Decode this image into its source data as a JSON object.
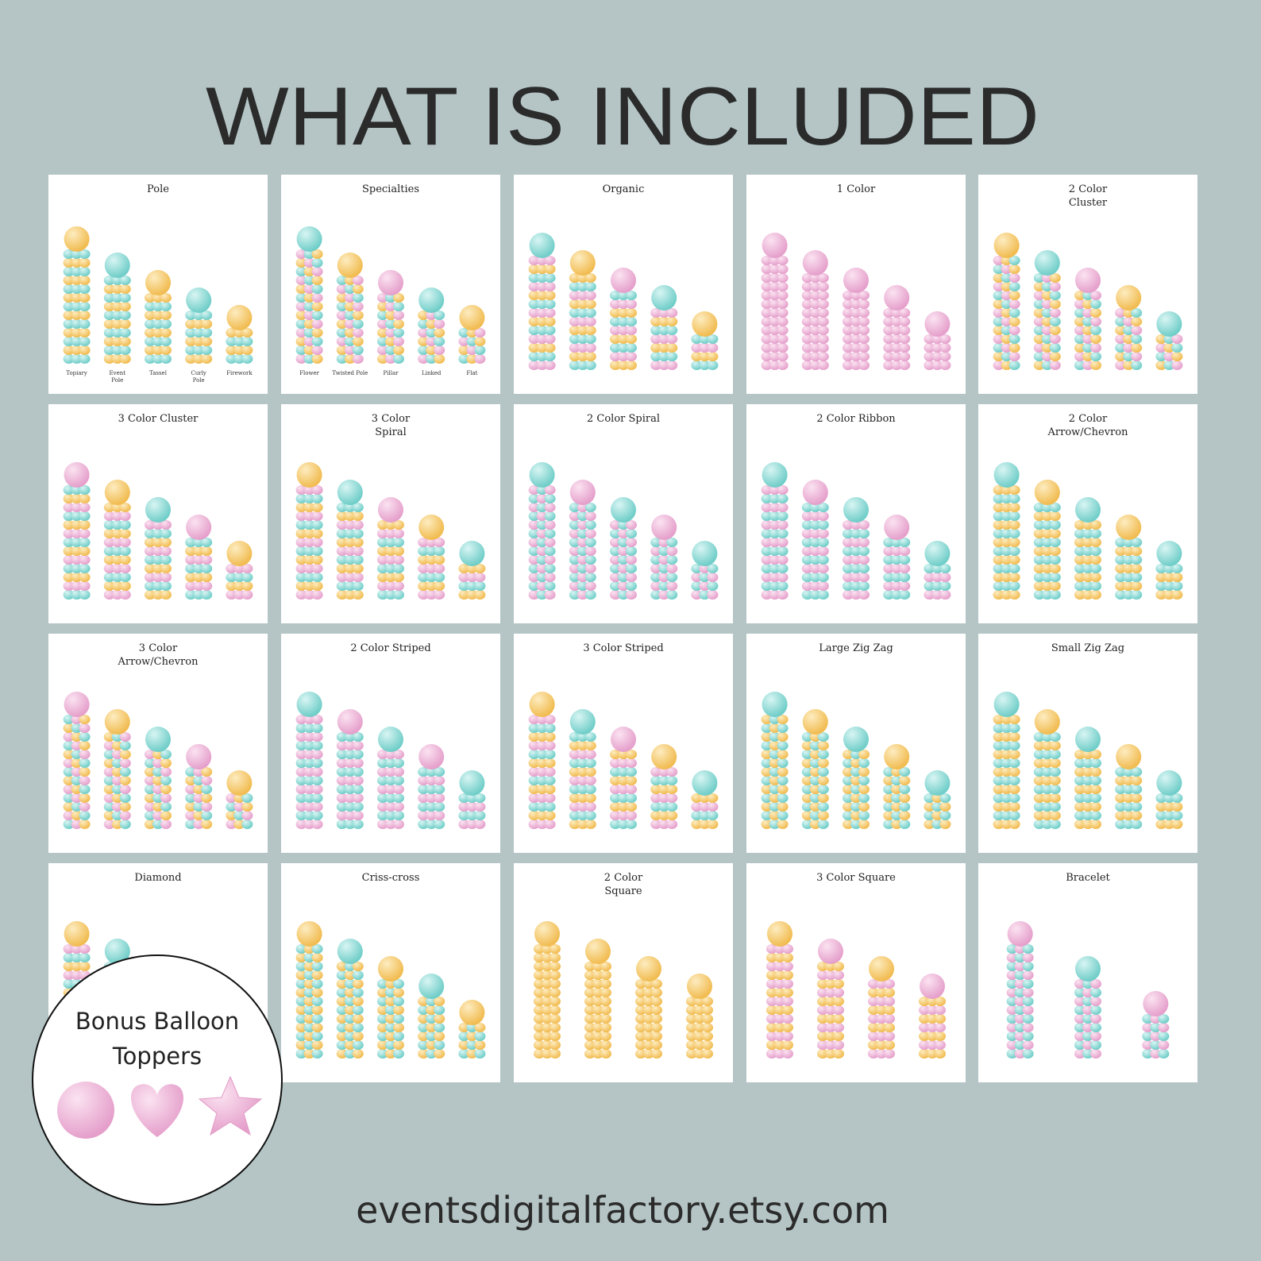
{
  "header": {
    "title": "WHAT IS INCLUDED"
  },
  "cards": [
    {
      "title": [
        "Pole"
      ],
      "labels": [
        [
          "Topiary"
        ],
        [
          "Event",
          "Pole"
        ],
        [
          "Tassel"
        ],
        [
          "Curly",
          "Pole"
        ],
        [
          "Firework"
        ]
      ]
    },
    {
      "title": [
        "Specialties"
      ],
      "labels": [
        [
          "Flower"
        ],
        [
          "Twisted Pole"
        ],
        [
          "Pillar"
        ],
        [
          "Linked"
        ],
        [
          "Flat"
        ]
      ]
    },
    {
      "title": [
        "Organic"
      ]
    },
    {
      "title": [
        "1 Color"
      ]
    },
    {
      "title": [
        "2 Color",
        "Cluster"
      ]
    },
    {
      "title": [
        "3 Color Cluster"
      ]
    },
    {
      "title": [
        "3 Color",
        "Spiral"
      ]
    },
    {
      "title": [
        "2 Color Spiral"
      ]
    },
    {
      "title": [
        "2 Color Ribbon"
      ]
    },
    {
      "title": [
        "2 Color",
        "Arrow/Chevron"
      ]
    },
    {
      "title": [
        "3 Color",
        "Arrow/Chevron"
      ]
    },
    {
      "title": [
        "2 Color Striped"
      ]
    },
    {
      "title": [
        "3 Color Striped"
      ]
    },
    {
      "title": [
        "Large Zig Zag"
      ]
    },
    {
      "title": [
        "Small Zig Zag"
      ]
    },
    {
      "title": [
        "Diamond"
      ]
    },
    {
      "title": [
        "Criss-cross"
      ]
    },
    {
      "title": [
        "2 Color",
        "Square"
      ]
    },
    {
      "title": [
        "3 Color Square"
      ]
    },
    {
      "title": [
        "Bracelet"
      ]
    }
  ],
  "bonus": {
    "lines": [
      "Bonus Balloon",
      "Toppers"
    ]
  },
  "footer": {
    "url": "eventsdigitalfactory.etsy.com"
  }
}
